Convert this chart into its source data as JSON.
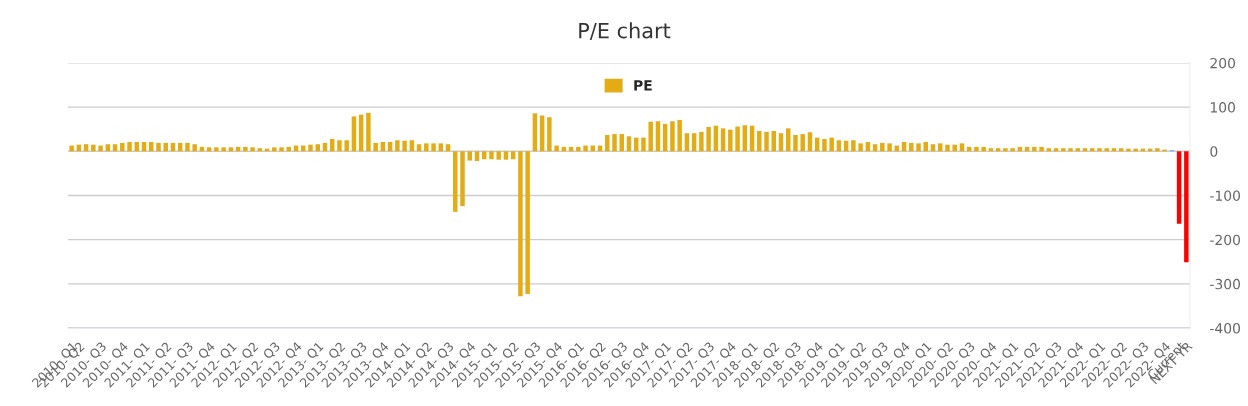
{
  "chart_data": {
    "type": "bar",
    "title": "P/E chart",
    "categories": [
      "2010- Q1",
      "2010- Q2",
      null,
      null,
      "2010- Q3",
      null,
      null,
      "2010- Q4",
      null,
      null,
      "2011- Q1",
      null,
      null,
      "2011- Q2",
      null,
      null,
      "2011- Q3",
      null,
      null,
      "2011- Q4",
      null,
      null,
      "2012- Q1",
      null,
      null,
      "2012- Q2",
      null,
      null,
      "2012- Q3",
      null,
      null,
      "2012- Q4",
      null,
      null,
      "2013- Q1",
      null,
      null,
      "2013- Q2",
      null,
      null,
      "2013- Q3",
      null,
      null,
      "2013- Q4",
      null,
      null,
      "2014- Q1",
      null,
      null,
      "2014- Q2",
      null,
      null,
      "2014- Q3",
      null,
      null,
      "2014- Q4",
      null,
      null,
      "2015- Q1",
      null,
      null,
      "2015- Q2",
      null,
      null,
      "2015- Q3",
      null,
      null,
      "2015- Q4",
      null,
      null,
      "2016- Q1",
      null,
      null,
      "2016- Q2",
      null,
      null,
      "2016- Q3",
      null,
      null,
      "2016- Q4",
      null,
      null,
      "2017- Q1",
      null,
      null,
      "2017- Q2",
      null,
      null,
      "2017- Q3",
      null,
      null,
      "2017- Q4",
      null,
      null,
      "2018- Q1",
      null,
      null,
      "2018- Q2",
      null,
      null,
      "2018- Q3",
      null,
      null,
      "2018- Q4",
      null,
      null,
      "2019- Q1",
      null,
      null,
      "2019- Q2",
      null,
      null,
      "2019- Q3",
      null,
      null,
      "2019- Q4",
      null,
      null,
      "2020- Q1",
      null,
      null,
      "2020- Q2",
      null,
      null,
      "2020- Q3",
      null,
      null,
      "2020- Q4",
      null,
      null,
      "2021- Q1",
      null,
      null,
      "2021- Q2",
      null,
      null,
      "2021- Q3",
      null,
      null,
      "2021- Q4",
      null,
      null,
      "2022- Q1",
      null,
      null,
      "2022- Q2",
      null,
      null,
      "2022- Q3",
      null,
      null,
      "2022- Q4",
      null,
      "Current",
      "NEXT YR"
    ],
    "series": [
      {
        "name": "PE",
        "color": "#e3ac15",
        "values": [
          13,
          15,
          16,
          15,
          13,
          16,
          16,
          19,
          21,
          21,
          21,
          21,
          19,
          19,
          19,
          19,
          19,
          16,
          10,
          9,
          9,
          9,
          9,
          10,
          10,
          9,
          7,
          6,
          9,
          9,
          10,
          13,
          13,
          15,
          16,
          19,
          28,
          25,
          25,
          79,
          83,
          87,
          19,
          21,
          21,
          25,
          24,
          25,
          16,
          18,
          18,
          18,
          16,
          -137,
          -124,
          -21,
          -22,
          -18,
          -18,
          -19,
          -19,
          -18,
          -328,
          -323,
          86,
          81,
          77,
          13,
          10,
          10,
          10,
          13,
          13,
          13,
          37,
          39,
          39,
          34,
          31,
          31,
          67,
          68,
          62,
          68,
          71,
          41,
          41,
          44,
          55,
          58,
          52,
          49,
          56,
          59,
          58,
          46,
          44,
          46,
          41,
          52,
          37,
          39,
          43,
          31,
          28,
          31,
          25,
          24,
          25,
          18,
          21,
          16,
          19,
          18,
          13,
          21,
          19,
          18,
          21,
          16,
          18,
          15,
          15,
          18,
          10,
          10,
          10,
          7,
          7,
          7,
          7,
          10,
          10,
          10,
          10,
          7,
          7,
          7,
          7,
          7,
          7,
          7,
          7,
          7,
          7,
          7,
          6,
          6,
          6,
          6,
          7,
          4,
          3,
          -164,
          -251
        ],
        "colors": [
          "#e3ac15",
          "#e3ac15",
          "#e3ac15",
          "#e3ac15",
          "#e3ac15",
          "#e3ac15",
          "#e3ac15",
          "#e3ac15",
          "#e3ac15",
          "#e3ac15",
          "#e3ac15",
          "#e3ac15",
          "#e3ac15",
          "#e3ac15",
          "#e3ac15",
          "#e3ac15",
          "#e3ac15",
          "#e3ac15",
          "#e3ac15",
          "#e3ac15",
          "#e3ac15",
          "#e3ac15",
          "#e3ac15",
          "#e3ac15",
          "#e3ac15",
          "#e3ac15",
          "#e3ac15",
          "#e3ac15",
          "#e3ac15",
          "#e3ac15",
          "#e3ac15",
          "#e3ac15",
          "#e3ac15",
          "#e3ac15",
          "#e3ac15",
          "#e3ac15",
          "#e3ac15",
          "#e3ac15",
          "#e3ac15",
          "#e3ac15",
          "#e3ac15",
          "#e3ac15",
          "#e3ac15",
          "#e3ac15",
          "#e3ac15",
          "#e3ac15",
          "#e3ac15",
          "#e3ac15",
          "#e3ac15",
          "#e3ac15",
          "#e3ac15",
          "#e3ac15",
          "#e3ac15",
          "#e3ac15",
          "#e3ac15",
          "#e3ac15",
          "#e3ac15",
          "#e3ac15",
          "#e3ac15",
          "#e3ac15",
          "#e3ac15",
          "#e3ac15",
          "#e3ac15",
          "#e3ac15",
          "#e3ac15",
          "#e3ac15",
          "#e3ac15",
          "#e3ac15",
          "#e3ac15",
          "#e3ac15",
          "#e3ac15",
          "#e3ac15",
          "#e3ac15",
          "#e3ac15",
          "#e3ac15",
          "#e3ac15",
          "#e3ac15",
          "#e3ac15",
          "#e3ac15",
          "#e3ac15",
          "#e3ac15",
          "#e3ac15",
          "#e3ac15",
          "#e3ac15",
          "#e3ac15",
          "#e3ac15",
          "#e3ac15",
          "#e3ac15",
          "#e3ac15",
          "#e3ac15",
          "#e3ac15",
          "#e3ac15",
          "#e3ac15",
          "#e3ac15",
          "#e3ac15",
          "#e3ac15",
          "#e3ac15",
          "#e3ac15",
          "#e3ac15",
          "#e3ac15",
          "#e3ac15",
          "#e3ac15",
          "#e3ac15",
          "#e3ac15",
          "#e3ac15",
          "#e3ac15",
          "#e3ac15",
          "#e3ac15",
          "#e3ac15",
          "#e3ac15",
          "#e3ac15",
          "#e3ac15",
          "#e3ac15",
          "#e3ac15",
          "#e3ac15",
          "#e3ac15",
          "#e3ac15",
          "#e3ac15",
          "#e3ac15",
          "#e3ac15",
          "#e3ac15",
          "#e3ac15",
          "#e3ac15",
          "#e3ac15",
          "#e3ac15",
          "#e3ac15",
          "#e3ac15",
          "#e3ac15",
          "#e3ac15",
          "#e3ac15",
          "#e3ac15",
          "#e3ac15",
          "#e3ac15",
          "#e3ac15",
          "#e3ac15",
          "#e3ac15",
          "#e3ac15",
          "#e3ac15",
          "#e3ac15",
          "#e3ac15",
          "#e3ac15",
          "#e3ac15",
          "#e3ac15",
          "#e3ac15",
          "#e3ac15",
          "#e3ac15",
          "#e3ac15",
          "#e3ac15",
          "#e3ac15",
          "#e3ac15",
          "#e3ac15",
          "#e3ac15",
          "#7cb5ec",
          "#ff0000",
          "#ff0000"
        ]
      }
    ],
    "ylim": [
      -400,
      200
    ],
    "yticks": [
      -400,
      -300,
      -200,
      -100,
      0,
      100,
      200
    ],
    "grid": "y",
    "legend": "top"
  }
}
